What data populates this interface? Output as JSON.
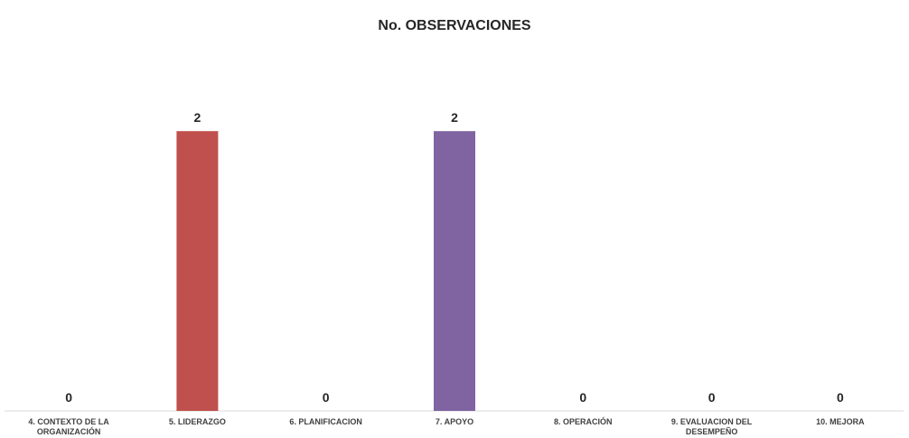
{
  "chart_data": {
    "type": "bar",
    "title": "No. OBSERVACIONES",
    "categories": [
      "4. CONTEXTO DE LA ORGANIZACIÓN",
      "5. LIDERAZGO",
      "6. PLANIFICACION",
      "7. APOYO",
      "8. OPERACIÓN",
      "9. EVALUACION DEL DESEMPEÑO",
      "10. MEJORA"
    ],
    "values": [
      0,
      2,
      0,
      2,
      0,
      0,
      0
    ],
    "data_labels": [
      "0",
      "2",
      "0",
      "2",
      "0",
      "0",
      "0"
    ],
    "colors": [
      "#4f81bd",
      "#c0504d",
      "#9bbb59",
      "#8064a2",
      "#4bacc6",
      "#f79646",
      "#2c4d75"
    ],
    "ylim": [
      0,
      2.15
    ],
    "xlabel": "",
    "ylabel": "",
    "grid": false,
    "legend": "none"
  }
}
